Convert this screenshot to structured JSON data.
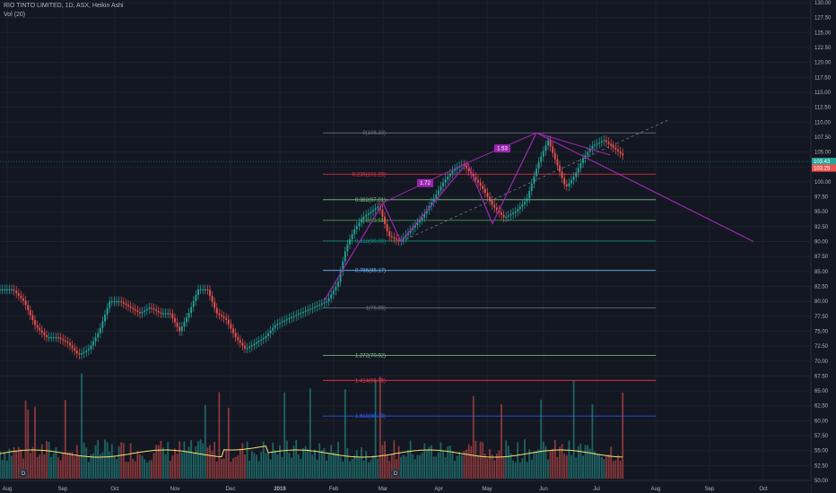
{
  "header": {
    "symbol_line": "RIO TINTO LIMITED, 1D, ASX, Heikin Ashi",
    "volume_line": "Vol (20)"
  },
  "colors": {
    "background": "#131722",
    "up": "#26a69a",
    "down": "#ef5350",
    "pattern": "#9c27b0",
    "volume_ma": "#f5e46c",
    "grid": "#1e222d",
    "axis_text": "#b2b5be"
  },
  "price_badges": [
    {
      "label": "103.43",
      "color": "#26a69a"
    },
    {
      "label": "103.25",
      "color": "#ef5350"
    }
  ],
  "markers": [
    "D",
    "D"
  ],
  "chart_data": {
    "type": "candlestick",
    "title": "RIO TINTO LIMITED, 1D, ASX, Heikin Ashi",
    "ylim": [
      50,
      130
    ],
    "y_ticks": [
      50.0,
      52.5,
      55.0,
      57.5,
      60.0,
      62.5,
      65.0,
      67.5,
      70.0,
      72.5,
      75.0,
      77.5,
      80.0,
      82.5,
      85.0,
      87.5,
      90.0,
      92.5,
      95.0,
      97.5,
      100.0,
      102.5,
      105.0,
      107.5,
      110.0,
      112.5,
      115.0,
      117.5,
      120.0,
      122.5,
      125.0,
      127.5,
      130.0
    ],
    "x_ticks": [
      "Aug",
      "Sep",
      "Oct",
      "Nov",
      "Dec",
      "2019",
      "Feb",
      "Mar",
      "Apr",
      "May",
      "Jun",
      "Jul",
      "Aug",
      "Sep",
      "Oct"
    ],
    "price_path": [
      [
        "Aug",
        82
      ],
      [
        "Aug",
        80
      ],
      [
        "Aug",
        76
      ],
      [
        "Aug",
        74
      ],
      [
        "Aug",
        74
      ],
      [
        "Sep",
        73
      ],
      [
        "Sep",
        71
      ],
      [
        "Sep",
        72
      ],
      [
        "Sep",
        75
      ],
      [
        "Sep",
        80
      ],
      [
        "Oct",
        80
      ],
      [
        "Oct",
        79
      ],
      [
        "Oct",
        78
      ],
      [
        "Oct",
        79
      ],
      [
        "Oct",
        78
      ],
      [
        "Oct",
        78
      ],
      [
        "Nov",
        75
      ],
      [
        "Nov",
        78
      ],
      [
        "Nov",
        82
      ],
      [
        "Nov",
        82
      ],
      [
        "Nov",
        78
      ],
      [
        "Nov",
        77
      ],
      [
        "Dec",
        74
      ],
      [
        "Dec",
        72
      ],
      [
        "Dec",
        73
      ],
      [
        "Dec",
        74
      ],
      [
        "Dec",
        76
      ],
      [
        "2019",
        77
      ],
      [
        "2019",
        78
      ],
      [
        "2019",
        79
      ],
      [
        "2019",
        80
      ],
      [
        "Feb",
        83
      ],
      [
        "Feb",
        89
      ],
      [
        "Feb",
        92
      ],
      [
        "Feb",
        94
      ],
      [
        "Feb",
        95
      ],
      [
        "Feb",
        96
      ],
      [
        "Mar",
        91
      ],
      [
        "Mar",
        90
      ],
      [
        "Mar",
        92
      ],
      [
        "Mar",
        94
      ],
      [
        "Mar",
        97
      ],
      [
        "Apr",
        100
      ],
      [
        "Apr",
        102
      ],
      [
        "Apr",
        103
      ],
      [
        "Apr",
        101
      ],
      [
        "Apr",
        99
      ],
      [
        "May",
        96
      ],
      [
        "May",
        94
      ],
      [
        "May",
        95
      ],
      [
        "May",
        97
      ],
      [
        "May",
        103
      ],
      [
        "Jun",
        107
      ],
      [
        "Jun",
        103
      ],
      [
        "Jun",
        99
      ],
      [
        "Jun",
        101
      ],
      [
        "Jun",
        104
      ],
      [
        "Jun",
        106
      ],
      [
        "Jul",
        107
      ],
      [
        "Jul",
        105
      ],
      [
        "Jul",
        103
      ],
      [
        "Jul",
        103.3
      ]
    ],
    "series": [
      {
        "name": "Vol (20)",
        "type": "line"
      }
    ],
    "fibonacci": [
      {
        "ratio": "0",
        "price": 108.2,
        "label": "0(108.20)",
        "color": "#787b86"
      },
      {
        "ratio": "0.236",
        "price": 101.29,
        "label": "0.236(101.29)",
        "color": "#f23645"
      },
      {
        "ratio": "0.382",
        "price": 97.01,
        "label": "0.382(97.01)",
        "color": "#81c784"
      },
      {
        "ratio": "0.5",
        "price": 93.55,
        "label": "0.5(93.55)",
        "color": "#4caf50"
      },
      {
        "ratio": "0.618",
        "price": 90.09,
        "label": "0.618(90.09)",
        "color": "#089981"
      },
      {
        "ratio": "0.786",
        "price": 85.17,
        "label": "0.786(85.17)",
        "color": "#64b5f6"
      },
      {
        "ratio": "1",
        "price": 78.89,
        "label": "1(78.89)",
        "color": "#787b86"
      },
      {
        "ratio": "1.272",
        "price": 70.92,
        "label": "1.272(70.92)",
        "color": "#81c784"
      },
      {
        "ratio": "1.414",
        "price": 66.76,
        "label": "1.414(66.76)",
        "color": "#f23645"
      },
      {
        "ratio": "1.618",
        "price": 60.79,
        "label": "1.618(60.79)",
        "color": "#2962ff"
      }
    ],
    "pattern_labels": [
      "1.72",
      "1.53"
    ],
    "current_price": 103.43,
    "grid": true,
    "legend": "top-left"
  }
}
